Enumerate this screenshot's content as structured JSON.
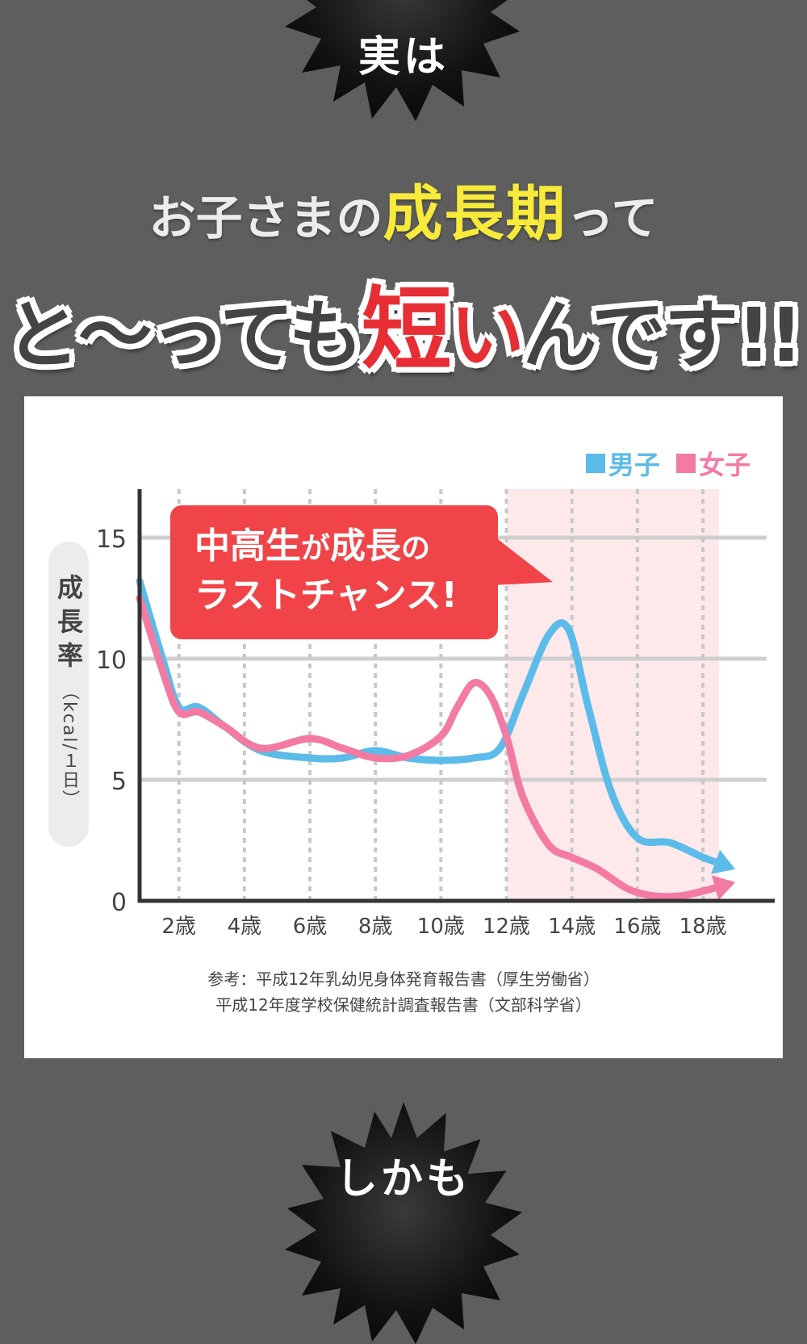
{
  "top_badge": "実は",
  "bottom_badge": "しかも",
  "headline": {
    "line1_pre": "お子さまの",
    "line1_highlight": "成長期",
    "line1_post": "って",
    "line2_pre": "と〜っても",
    "line2_red": "短",
    "line2_red2": "い",
    "line2_post": "んです!!"
  },
  "callout": {
    "line1_a": "中高生",
    "line1_b": "が",
    "line1_c": "成長",
    "line1_d": "の",
    "line2": "ラストチャンス!"
  },
  "source": {
    "line1": "参考：平成12年乳幼児身体発育報告書（厚生労働省）",
    "line2": "平成12年度学校保健統計調査報告書（文部科学省）"
  },
  "colors": {
    "boys": "#5bbbe9",
    "girls": "#f37aa3",
    "highlight_band": "#fde9ea",
    "callout": "#f04448",
    "headline_yellow": "#f7ea3a",
    "headline_red": "#e62e34"
  },
  "chart_data": {
    "type": "line",
    "title": "",
    "ylabel": "成長率",
    "ylabel_unit": "（kcal/１日）",
    "xlabel": "",
    "ylim": [
      0,
      17
    ],
    "xlim": [
      0.8,
      19.7
    ],
    "yticks": [
      0,
      5,
      10,
      15
    ],
    "yticklabels": [
      "0",
      "5",
      "10",
      "15"
    ],
    "xticks": [
      2,
      4,
      6,
      8,
      10,
      12,
      14,
      16,
      18
    ],
    "xticklabels": [
      "2歳",
      "4歳",
      "6歳",
      "8歳",
      "10歳",
      "12歳",
      "14歳",
      "16歳",
      "18歳"
    ],
    "highlight_range": [
      12,
      18
    ],
    "grid": true,
    "legend": "top-right",
    "series": [
      {
        "name": "男子",
        "color": "#5bbbe9",
        "x": [
          0.8,
          1.5,
          2,
          2.6,
          3.4,
          4.5,
          6,
          7,
          8,
          9,
          10,
          11,
          11.8,
          12.5,
          13.3,
          13.9,
          14.5,
          15.2,
          16,
          17,
          18,
          18.8
        ],
        "y": [
          13.2,
          10,
          8,
          8,
          7.2,
          6.2,
          5.9,
          5.9,
          6.2,
          5.9,
          5.8,
          5.9,
          6.3,
          8.5,
          11,
          11.2,
          8,
          4.5,
          2.6,
          2.4,
          1.8,
          1.4
        ]
      },
      {
        "name": "女子",
        "color": "#f37aa3",
        "x": [
          0.8,
          1.5,
          2,
          2.6,
          3.4,
          4.5,
          6,
          7,
          8,
          9,
          10,
          10.5,
          11,
          11.5,
          12,
          12.5,
          13.3,
          14,
          14.8,
          15.7,
          16.5,
          17.3,
          18,
          18.8
        ],
        "y": [
          12.5,
          9.5,
          7.8,
          7.8,
          7.2,
          6.3,
          6.7,
          6.3,
          5.9,
          6,
          6.8,
          8,
          9,
          8.5,
          6.8,
          4.3,
          2.3,
          1.8,
          1.3,
          0.5,
          0.2,
          0.2,
          0.4,
          0.7
        ]
      }
    ]
  }
}
